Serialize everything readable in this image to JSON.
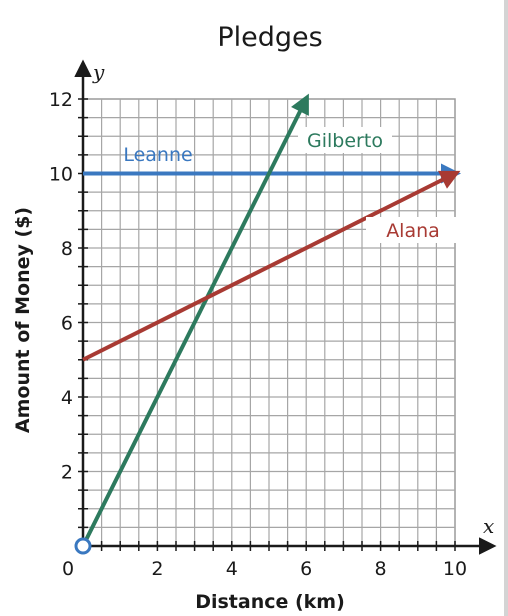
{
  "chart_data": {
    "type": "line",
    "title": "Pledges",
    "xlabel": "Distance (km)",
    "ylabel": "Amount of Money ($)",
    "x_axis_letter": "x",
    "y_axis_letter": "y",
    "xlim": [
      0,
      10
    ],
    "ylim": [
      0,
      12
    ],
    "grid": true,
    "x_ticks": [
      0,
      2,
      4,
      6,
      8,
      10
    ],
    "y_ticks": [
      2,
      4,
      6,
      8,
      10,
      12
    ],
    "series": [
      {
        "name": "Leanne",
        "color": "#3a78c0",
        "points": [
          [
            0,
            10
          ],
          [
            10,
            10
          ]
        ],
        "arrow": true
      },
      {
        "name": "Gilberto",
        "color": "#2d7a5e",
        "points": [
          [
            0,
            0
          ],
          [
            6,
            12
          ]
        ],
        "arrow": true
      },
      {
        "name": "Alana",
        "color": "#a83a33",
        "points": [
          [
            0,
            5
          ],
          [
            10,
            10
          ]
        ],
        "arrow": true
      }
    ]
  }
}
